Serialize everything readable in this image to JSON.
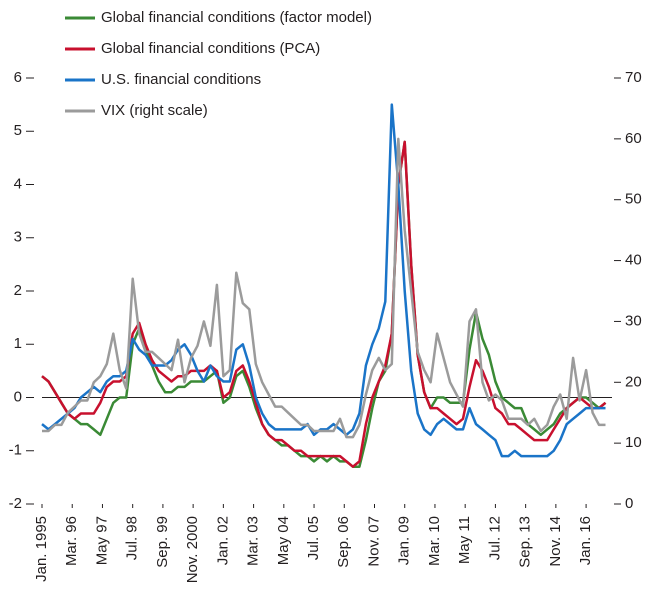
{
  "chart_data": {
    "type": "line",
    "x": [
      "1995-01",
      "1995-04",
      "1995-07",
      "1995-10",
      "1996-01",
      "1996-04",
      "1996-07",
      "1996-10",
      "1997-01",
      "1997-04",
      "1997-07",
      "1997-10",
      "1998-01",
      "1998-04",
      "1998-07",
      "1998-10",
      "1999-01",
      "1999-04",
      "1999-07",
      "1999-10",
      "2000-01",
      "2000-04",
      "2000-07",
      "2000-10",
      "2001-01",
      "2001-04",
      "2001-07",
      "2001-10",
      "2002-01",
      "2002-04",
      "2002-07",
      "2002-10",
      "2003-01",
      "2003-04",
      "2003-07",
      "2003-10",
      "2004-01",
      "2004-04",
      "2004-07",
      "2004-10",
      "2005-01",
      "2005-04",
      "2005-07",
      "2005-10",
      "2006-01",
      "2006-04",
      "2006-07",
      "2006-10",
      "2007-01",
      "2007-04",
      "2007-07",
      "2007-10",
      "2008-01",
      "2008-04",
      "2008-07",
      "2008-10",
      "2009-01",
      "2009-04",
      "2009-07",
      "2009-10",
      "2010-01",
      "2010-04",
      "2010-07",
      "2010-10",
      "2011-01",
      "2011-04",
      "2011-07",
      "2011-10",
      "2012-01",
      "2012-04",
      "2012-07",
      "2012-10",
      "2013-01",
      "2013-04",
      "2013-07",
      "2013-10",
      "2014-01",
      "2014-04",
      "2014-07",
      "2014-10",
      "2015-01",
      "2015-04",
      "2015-07",
      "2015-10",
      "2016-01",
      "2016-04",
      "2016-07",
      "2016-10"
    ],
    "series": [
      {
        "name": "Global financial conditions (factor model)",
        "color": "#3a8a35",
        "values": [
          0.4,
          0.3,
          0.1,
          -0.1,
          -0.3,
          -0.4,
          -0.5,
          -0.5,
          -0.6,
          -0.7,
          -0.4,
          -0.1,
          0.0,
          0.0,
          1.0,
          1.3,
          0.9,
          0.6,
          0.3,
          0.1,
          0.1,
          0.2,
          0.2,
          0.3,
          0.3,
          0.3,
          0.4,
          0.5,
          -0.1,
          0.0,
          0.4,
          0.5,
          0.2,
          -0.2,
          -0.5,
          -0.7,
          -0.8,
          -0.9,
          -0.9,
          -1.0,
          -1.1,
          -1.1,
          -1.2,
          -1.1,
          -1.2,
          -1.1,
          -1.2,
          -1.2,
          -1.3,
          -1.3,
          -0.8,
          -0.2,
          0.3,
          0.5,
          1.2,
          4.0,
          4.8,
          2.5,
          0.8,
          0.1,
          -0.2,
          0.0,
          0.0,
          -0.1,
          -0.1,
          -0.1,
          0.9,
          1.6,
          1.1,
          0.8,
          0.3,
          0.0,
          -0.1,
          -0.2,
          -0.2,
          -0.5,
          -0.6,
          -0.7,
          -0.6,
          -0.5,
          -0.3,
          -0.2,
          -0.1,
          0.0,
          0.0,
          -0.1,
          -0.2,
          -0.1
        ]
      },
      {
        "name": "Global financial conditions (PCA)",
        "color": "#c8102e",
        "values": [
          0.4,
          0.3,
          0.1,
          -0.1,
          -0.3,
          -0.4,
          -0.3,
          -0.3,
          -0.3,
          -0.1,
          0.2,
          0.3,
          0.3,
          0.4,
          1.2,
          1.4,
          1.0,
          0.7,
          0.5,
          0.4,
          0.3,
          0.4,
          0.4,
          0.5,
          0.5,
          0.5,
          0.6,
          0.5,
          0.0,
          0.1,
          0.5,
          0.6,
          0.3,
          -0.1,
          -0.5,
          -0.7,
          -0.8,
          -0.8,
          -0.9,
          -1.0,
          -1.0,
          -1.1,
          -1.1,
          -1.1,
          -1.1,
          -1.1,
          -1.1,
          -1.2,
          -1.3,
          -1.2,
          -0.5,
          0.0,
          0.3,
          0.6,
          1.2,
          4.0,
          4.8,
          2.5,
          0.8,
          0.1,
          -0.2,
          -0.2,
          -0.3,
          -0.4,
          -0.5,
          -0.4,
          0.2,
          0.7,
          0.5,
          0.2,
          -0.2,
          -0.3,
          -0.5,
          -0.5,
          -0.6,
          -0.7,
          -0.8,
          -0.8,
          -0.8,
          -0.6,
          -0.4,
          -0.2,
          -0.1,
          0.0,
          -0.1,
          -0.2,
          -0.2,
          -0.1
        ]
      },
      {
        "name": "U.S. financial conditions",
        "color": "#1a74c8",
        "values": [
          -0.5,
          -0.6,
          -0.5,
          -0.4,
          -0.3,
          -0.2,
          0.0,
          0.1,
          0.2,
          0.1,
          0.3,
          0.4,
          0.4,
          0.5,
          1.1,
          0.9,
          0.8,
          0.6,
          0.6,
          0.6,
          0.7,
          0.9,
          1.0,
          0.8,
          0.5,
          0.3,
          0.6,
          0.4,
          0.3,
          0.3,
          0.9,
          1.0,
          0.6,
          0.0,
          -0.3,
          -0.5,
          -0.6,
          -0.6,
          -0.6,
          -0.6,
          -0.6,
          -0.5,
          -0.7,
          -0.6,
          -0.6,
          -0.5,
          -0.6,
          -0.7,
          -0.6,
          -0.3,
          0.6,
          1.0,
          1.3,
          1.8,
          5.5,
          4.0,
          2.0,
          0.5,
          -0.3,
          -0.6,
          -0.7,
          -0.5,
          -0.4,
          -0.5,
          -0.6,
          -0.6,
          -0.2,
          -0.5,
          -0.6,
          -0.7,
          -0.8,
          -1.1,
          -1.1,
          -1.0,
          -1.1,
          -1.1,
          -1.1,
          -1.1,
          -1.1,
          -1.0,
          -0.8,
          -0.5,
          -0.4,
          -0.3,
          -0.2,
          -0.2,
          -0.2,
          -0.2
        ]
      },
      {
        "name": "VIX (right scale)",
        "color": "#9b9b9b",
        "axis": "y2",
        "values": [
          12,
          12,
          13,
          13,
          15,
          16,
          17,
          17,
          20,
          21,
          23,
          28,
          22,
          19,
          37,
          28,
          25,
          25,
          24,
          23,
          22,
          27,
          20,
          24,
          26,
          30,
          26,
          36,
          21,
          22,
          38,
          33,
          32,
          23,
          20,
          18,
          16,
          16,
          15,
          14,
          13,
          13,
          12,
          12,
          12,
          12,
          14,
          11,
          11,
          13,
          18,
          22,
          24,
          22,
          23,
          60,
          45,
          35,
          25,
          22,
          20,
          28,
          24,
          20,
          18,
          16,
          30,
          32,
          20,
          17,
          18,
          17,
          14,
          14,
          14,
          13,
          14,
          12,
          13,
          16,
          18,
          14,
          24,
          17,
          22,
          15,
          13,
          13
        ]
      }
    ],
    "xlim": [
      "1995-01",
      "2017-01"
    ],
    "xticks": [
      {
        "value": "1995-01",
        "label": "Jan. 1995"
      },
      {
        "value": "1996-03",
        "label": "Mar. 96"
      },
      {
        "value": "1997-05",
        "label": "May 97"
      },
      {
        "value": "1998-07",
        "label": "Jul. 98"
      },
      {
        "value": "1999-09",
        "label": "Sep. 99"
      },
      {
        "value": "2000-11",
        "label": "Nov. 2000"
      },
      {
        "value": "2002-01",
        "label": "Jan. 02"
      },
      {
        "value": "2003-03",
        "label": "Mar. 03"
      },
      {
        "value": "2004-05",
        "label": "May 04"
      },
      {
        "value": "2005-07",
        "label": "Jul. 05"
      },
      {
        "value": "2006-09",
        "label": "Sep. 06"
      },
      {
        "value": "2007-11",
        "label": "Nov. 07"
      },
      {
        "value": "2009-01",
        "label": "Jan. 09"
      },
      {
        "value": "2010-03",
        "label": "Mar. 10"
      },
      {
        "value": "2011-05",
        "label": "May 11"
      },
      {
        "value": "2012-07",
        "label": "Jul. 12"
      },
      {
        "value": "2013-09",
        "label": "Sep. 13"
      },
      {
        "value": "2014-11",
        "label": "Nov. 14"
      },
      {
        "value": "2016-01",
        "label": "Jan. 16"
      }
    ],
    "ylim": [
      -2,
      6
    ],
    "yticks": [
      -2,
      -1,
      0,
      1,
      2,
      3,
      4,
      5,
      6
    ],
    "y2lim": [
      0,
      70
    ],
    "y2ticks": [
      0,
      10,
      20,
      30,
      40,
      50,
      60,
      70
    ],
    "legend": "top-left"
  }
}
